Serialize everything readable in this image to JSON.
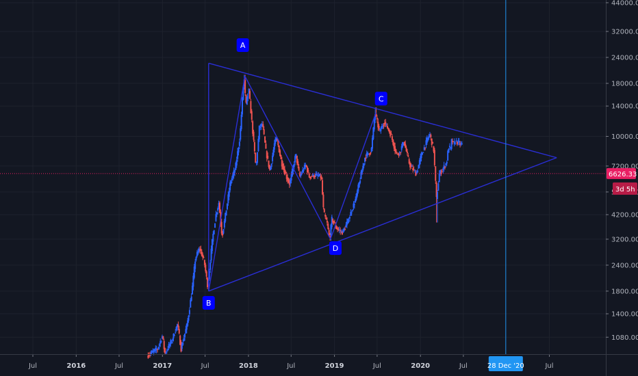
{
  "chart_data": {
    "type": "candlestick",
    "y_scale": "log",
    "ylim": [
      880,
      46000
    ],
    "xlim": [
      "2015-05-01",
      "2021-10-15"
    ],
    "y_ticks": [
      "1080.00",
      "1400.00",
      "1800.00",
      "2400.00",
      "3200.00",
      "4200.00",
      "5400.00",
      "7200.00",
      "10000.00",
      "14000.00",
      "18000.00",
      "24000.00",
      "32000.00",
      "44000.00"
    ],
    "x_ticks": [
      {
        "label": "Jul",
        "date": "2015-07-01",
        "bold": false
      },
      {
        "label": "2016",
        "date": "2016-01-01",
        "bold": true
      },
      {
        "label": "Jul",
        "date": "2016-07-01",
        "bold": false
      },
      {
        "label": "2017",
        "date": "2017-01-01",
        "bold": true
      },
      {
        "label": "Jul",
        "date": "2017-07-01",
        "bold": false
      },
      {
        "label": "2018",
        "date": "2018-01-01",
        "bold": true
      },
      {
        "label": "Jul",
        "date": "2018-07-01",
        "bold": false
      },
      {
        "label": "2019",
        "date": "2019-01-01",
        "bold": true
      },
      {
        "label": "Jul",
        "date": "2019-07-01",
        "bold": false
      },
      {
        "label": "2020",
        "date": "2020-01-01",
        "bold": true
      },
      {
        "label": "Jul",
        "date": "2020-07-01",
        "bold": false
      },
      {
        "label": "Jul",
        "date": "2021-07-01",
        "bold": false
      }
    ],
    "price_path": [
      [
        "2016-11-01",
        880
      ],
      [
        "2016-12-15",
        950
      ],
      [
        "2017-01-05",
        1100
      ],
      [
        "2017-01-15",
        900
      ],
      [
        "2017-02-15",
        1050
      ],
      [
        "2017-03-10",
        1250
      ],
      [
        "2017-03-25",
        950
      ],
      [
        "2017-04-20",
        1250
      ],
      [
        "2017-05-10",
        1800
      ],
      [
        "2017-05-25",
        2600
      ],
      [
        "2017-06-12",
        2900
      ],
      [
        "2017-07-01",
        2500
      ],
      [
        "2017-07-16",
        1900
      ],
      [
        "2017-08-05",
        3200
      ],
      [
        "2017-08-20",
        4200
      ],
      [
        "2017-09-01",
        4800
      ],
      [
        "2017-09-15",
        3300
      ],
      [
        "2017-10-01",
        4300
      ],
      [
        "2017-10-20",
        6000
      ],
      [
        "2017-11-10",
        7000
      ],
      [
        "2017-11-30",
        10000
      ],
      [
        "2017-12-10",
        15000
      ],
      [
        "2017-12-17",
        19500
      ],
      [
        "2017-12-25",
        14000
      ],
      [
        "2018-01-06",
        17000
      ],
      [
        "2018-01-20",
        11500
      ],
      [
        "2018-02-06",
        7000
      ],
      [
        "2018-02-20",
        11000
      ],
      [
        "2018-03-05",
        11500
      ],
      [
        "2018-03-20",
        8500
      ],
      [
        "2018-04-06",
        6800
      ],
      [
        "2018-04-25",
        9200
      ],
      [
        "2018-05-05",
        9800
      ],
      [
        "2018-05-25",
        7500
      ],
      [
        "2018-06-15",
        6400
      ],
      [
        "2018-06-29",
        5900
      ],
      [
        "2018-07-25",
        8200
      ],
      [
        "2018-08-10",
        6400
      ],
      [
        "2018-09-05",
        7300
      ],
      [
        "2018-09-20",
        6400
      ],
      [
        "2018-10-15",
        6500
      ],
      [
        "2018-11-10",
        6400
      ],
      [
        "2018-11-20",
        4300
      ],
      [
        "2018-12-05",
        3800
      ],
      [
        "2018-12-15",
        3200
      ],
      [
        "2018-12-25",
        4000
      ],
      [
        "2019-01-15",
        3600
      ],
      [
        "2019-02-08",
        3450
      ],
      [
        "2019-03-01",
        3850
      ],
      [
        "2019-04-05",
        5000
      ],
      [
        "2019-05-15",
        8000
      ],
      [
        "2019-06-10",
        8500
      ],
      [
        "2019-06-26",
        13000
      ],
      [
        "2019-07-15",
        10500
      ],
      [
        "2019-08-05",
        11800
      ],
      [
        "2019-09-01",
        10200
      ],
      [
        "2019-09-25",
        8200
      ],
      [
        "2019-10-10",
        8400
      ],
      [
        "2019-10-26",
        9500
      ],
      [
        "2019-11-20",
        7300
      ],
      [
        "2019-12-18",
        6600
      ],
      [
        "2020-01-08",
        8100
      ],
      [
        "2020-02-13",
        10300
      ],
      [
        "2020-03-01",
        8600
      ],
      [
        "2020-03-13",
        5000
      ],
      [
        "2020-03-25",
        6600
      ],
      [
        "2020-04-10",
        7000
      ],
      [
        "2020-04-25",
        7500
      ],
      [
        "2020-05-03",
        8900
      ],
      [
        "2020-05-12",
        8700
      ],
      [
        "2020-05-17",
        9700
      ],
      [
        "2020-05-25",
        9100
      ],
      [
        "2020-06-01",
        9500
      ],
      [
        "2020-06-15",
        9300
      ],
      [
        "2020-06-25",
        9150
      ]
    ],
    "wick_extremes": [
      [
        "2017-12-17",
        19800
      ],
      [
        "2020-03-12",
        3850
      ],
      [
        "2019-06-26",
        13800
      ],
      [
        "2018-12-15",
        3150
      ]
    ],
    "last_price": "6626.33",
    "countdown": "3d 5h",
    "crosshair_label": "28 Dec '20",
    "crosshair_date": "2020-12-28",
    "pattern_lines": [
      {
        "from": [
          "2017-07-16",
          1800
        ],
        "to": [
          "2017-07-16",
          22500
        ]
      },
      {
        "from": [
          "2017-07-16",
          22500
        ],
        "to": [
          "2021-08-01",
          7900
        ]
      },
      {
        "from": [
          "2017-07-16",
          1800
        ],
        "to": [
          "2021-08-01",
          7900
        ]
      },
      {
        "from": [
          "2017-07-16",
          1800
        ],
        "to": [
          "2017-12-17",
          19500
        ]
      },
      {
        "from": [
          "2017-12-17",
          19500
        ],
        "to": [
          "2018-12-15",
          3200
        ]
      },
      {
        "from": [
          "2018-12-15",
          3200
        ],
        "to": [
          "2019-06-26",
          13000
        ]
      }
    ],
    "point_labels": [
      {
        "text": "A",
        "date": "2017-12-08",
        "price": 27500
      },
      {
        "text": "B",
        "date": "2017-07-16",
        "price": 1580
      },
      {
        "text": "C",
        "date": "2019-07-18",
        "price": 15200
      },
      {
        "text": "D",
        "date": "2019-01-05",
        "price": 2900
      }
    ],
    "colors": {
      "background": "#131722",
      "up": "#2962ff",
      "down": "#ef5350",
      "pattern": "#2a2ed6",
      "crosshair": "#2196f3",
      "price_line": "#e91e63",
      "label_bg": "#0000ff",
      "axis_text": "#b2b5be"
    }
  }
}
